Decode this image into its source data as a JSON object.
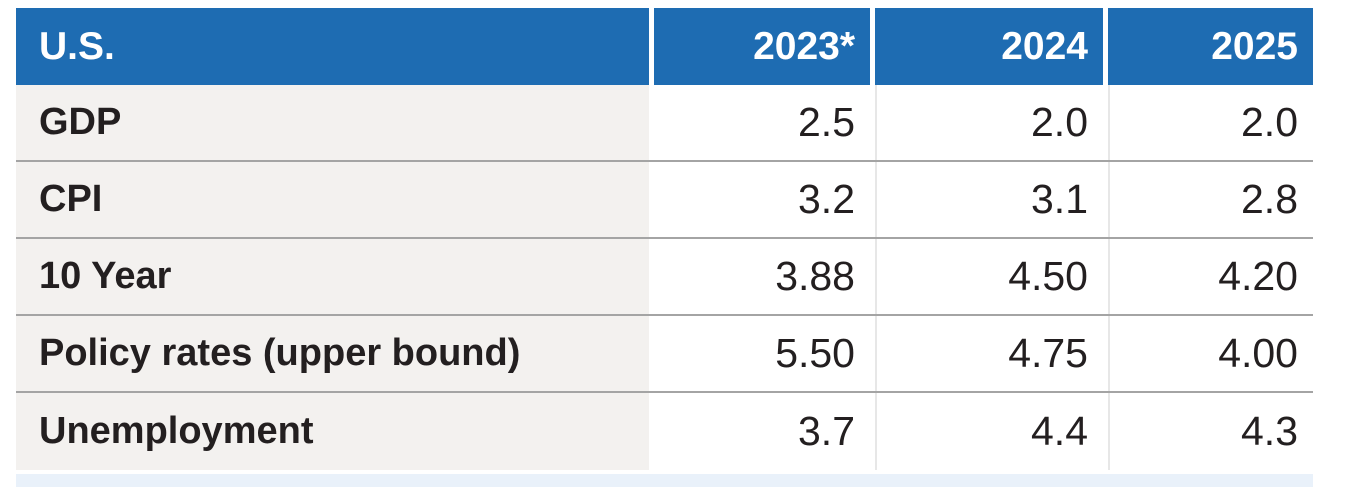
{
  "table": {
    "title": "U.S.",
    "columns": [
      "2023*",
      "2024",
      "2025"
    ],
    "rows": [
      {
        "label": "GDP",
        "values": [
          "2.5",
          "2.0",
          "2.0"
        ]
      },
      {
        "label": "CPI",
        "values": [
          "3.2",
          "3.1",
          "2.8"
        ]
      },
      {
        "label": "10 Year",
        "values": [
          "3.88",
          "4.50",
          "4.20"
        ]
      },
      {
        "label": "Policy rates (upper bound)",
        "values": [
          "5.50",
          "4.75",
          "4.00"
        ]
      },
      {
        "label": "Unemployment",
        "values": [
          "3.7",
          "4.4",
          "4.3"
        ]
      }
    ]
  },
  "colors": {
    "header_blue": "#1e6cb2",
    "label_bg": "#f3f1ef",
    "separator": "#a4a4a4",
    "footer_strip": "#e9f1fa",
    "text_dark": "#231f20",
    "cell_line": "#e7e7e7"
  },
  "chart_data": {
    "type": "table",
    "title": "U.S.",
    "categories": [
      "2023*",
      "2024",
      "2025"
    ],
    "series": [
      {
        "name": "GDP",
        "values": [
          2.5,
          2.0,
          2.0
        ]
      },
      {
        "name": "CPI",
        "values": [
          3.2,
          3.1,
          2.8
        ]
      },
      {
        "name": "10 Year",
        "values": [
          3.88,
          4.5,
          4.2
        ]
      },
      {
        "name": "Policy rates (upper bound)",
        "values": [
          5.5,
          4.75,
          4.0
        ]
      },
      {
        "name": "Unemployment",
        "values": [
          3.7,
          4.4,
          4.3
        ]
      }
    ],
    "layout": {
      "header_fill": "#1e6cb2",
      "row_label_fill": "#f3f1ef",
      "grid": "horizontal-separators"
    }
  }
}
